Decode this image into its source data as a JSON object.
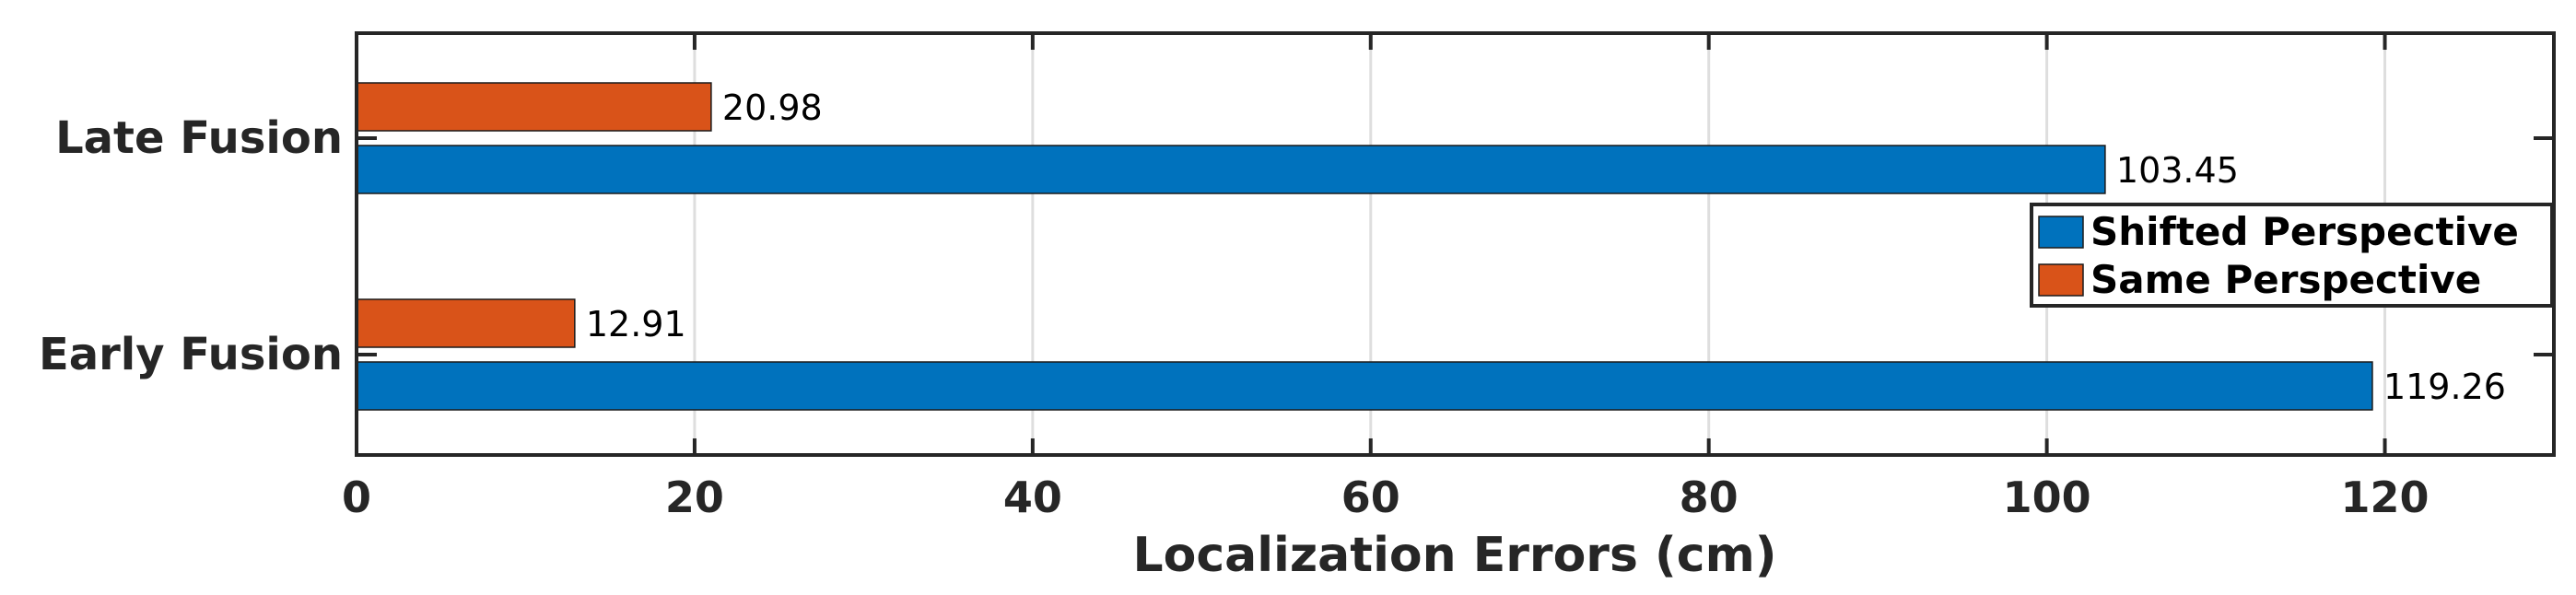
{
  "chart_data": {
    "type": "bar",
    "orientation": "horizontal",
    "categories": [
      "Early Fusion",
      "Late Fusion"
    ],
    "series": [
      {
        "name": "Shifted Perspective",
        "values": [
          119.26,
          103.45
        ],
        "color": "#0072BD"
      },
      {
        "name": "Same Perspective",
        "values": [
          12.91,
          20.98
        ],
        "color": "#D95319"
      }
    ],
    "data_labels": {
      "Shifted Perspective": [
        "119.26",
        "103.45"
      ],
      "Same Perspective": [
        "12.91",
        "20.98"
      ]
    },
    "xlabel": "Localization Errors (cm)",
    "ylabel": "",
    "xlim": [
      0,
      130
    ],
    "xticks": [
      0,
      20,
      40,
      60,
      80,
      100,
      120
    ],
    "xtick_labels": [
      "0",
      "20",
      "40",
      "60",
      "80",
      "100",
      "120"
    ],
    "grid": true,
    "legend_position": "right",
    "axis_color": "#262626",
    "grid_color": "#dedede"
  }
}
